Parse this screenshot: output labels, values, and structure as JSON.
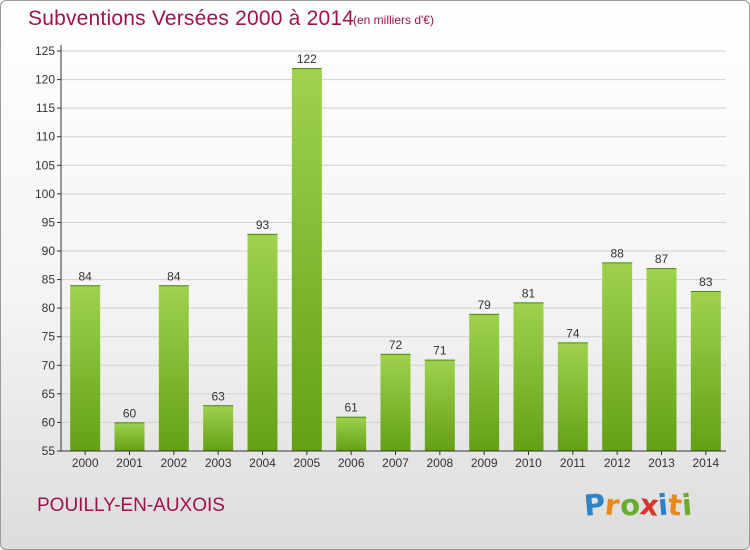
{
  "header": {
    "title": "Subventions Versées 2000 à 2014",
    "subtitle": "(en milliers d'€)"
  },
  "footer": {
    "commune": "POUILLY-EN-AUXOIS",
    "brand": {
      "text": "Proxiti",
      "letters": [
        {
          "char": "P",
          "color": "#2e83c6"
        },
        {
          "char": "r",
          "color": "#e8891e"
        },
        {
          "char": "o",
          "color": "#6aac2b"
        },
        {
          "char": "x",
          "color": "#d8372a"
        },
        {
          "char": "i",
          "color": "#2e83c6"
        },
        {
          "char": "t",
          "color": "#e8891e"
        },
        {
          "char": "i",
          "color": "#6aac2b"
        }
      ]
    }
  },
  "colors": {
    "accent": "#a0114f",
    "bar_light": "#9fd24f",
    "bar_dark": "#64a015",
    "grid": "#d0d0d0",
    "axis": "#333333"
  },
  "chart_data": {
    "type": "bar",
    "categories": [
      "2000",
      "2001",
      "2002",
      "2003",
      "2004",
      "2005",
      "2006",
      "2007",
      "2008",
      "2009",
      "2010",
      "2011",
      "2012",
      "2013",
      "2014"
    ],
    "values": [
      84,
      60,
      84,
      63,
      93,
      122,
      61,
      72,
      71,
      79,
      81,
      74,
      88,
      87,
      83
    ],
    "ylim": [
      55,
      125
    ],
    "yticks": [
      55,
      60,
      65,
      70,
      75,
      80,
      85,
      90,
      95,
      100,
      105,
      110,
      115,
      120,
      125
    ],
    "grid": true,
    "data_labels": true,
    "legend": "none"
  }
}
